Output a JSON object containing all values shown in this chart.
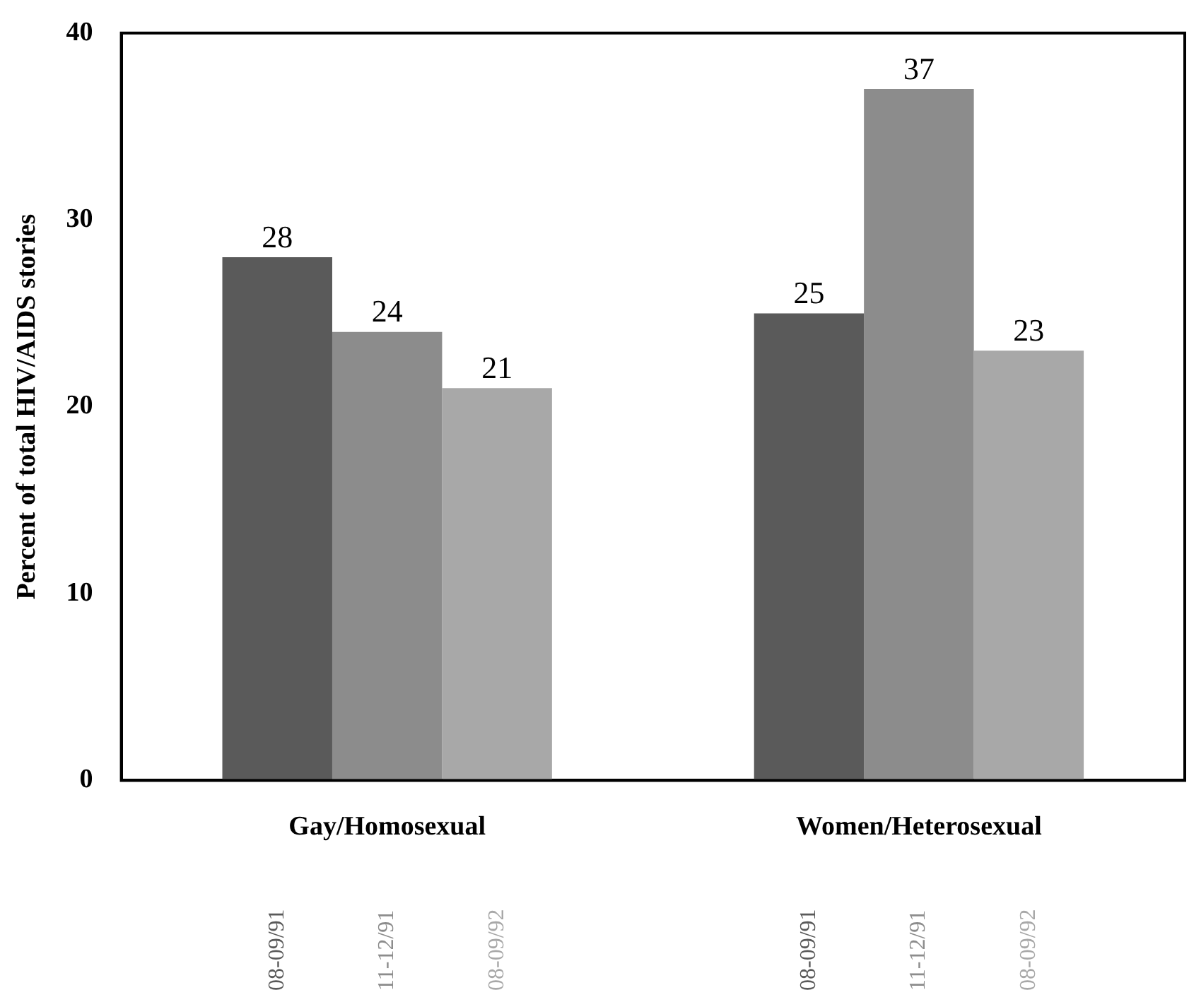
{
  "chart_data": {
    "type": "bar",
    "ylabel": "Percent of total HIV/AIDS stories",
    "categories": [
      "Gay/Homosexual",
      "Women/Heterosexual"
    ],
    "series": [
      {
        "name": "08-09/91",
        "color": "#5a5a5a",
        "values": [
          28,
          25
        ]
      },
      {
        "name": "11-12/91",
        "color": "#8c8c8c",
        "values": [
          24,
          37
        ]
      },
      {
        "name": "08-09/92",
        "color": "#a8a8a8",
        "values": [
          21,
          23
        ]
      }
    ],
    "ylim": [
      0,
      40
    ],
    "yticks": [
      0,
      10,
      20,
      30,
      40
    ],
    "grid": false,
    "legend": false,
    "data_labels": true
  }
}
